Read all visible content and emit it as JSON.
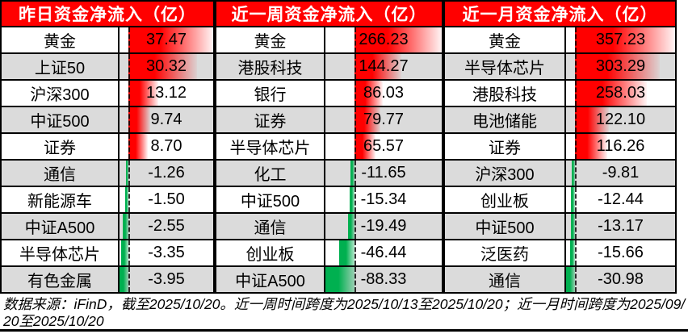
{
  "colors": {
    "header_bg": "#FF0000",
    "positive_bar": "#FF0000",
    "negative_bar": "#00B050",
    "stripe": "#DBDBDB",
    "header_text": "#FFFFFF"
  },
  "chart_data": [
    {
      "type": "bar",
      "title": "昨日资金净流入（亿）",
      "categories": [
        "黄金",
        "上证50",
        "沪深300",
        "中证500",
        "证券",
        "通信",
        "新能源车",
        "中证A500",
        "半导体芯片",
        "有色金属"
      ],
      "values": [
        37.47,
        30.32,
        13.12,
        9.74,
        8.7,
        -1.26,
        -1.5,
        -2.55,
        -3.35,
        -3.95
      ],
      "xlabel": "",
      "ylabel": "",
      "legend": false,
      "bar_style": "data-bars-with-dashed-zero-axis"
    },
    {
      "type": "bar",
      "title": "近一周资金净流入（亿）",
      "categories": [
        "黄金",
        "港股科技",
        "银行",
        "证券",
        "半导体芯片",
        "化工",
        "中证500",
        "通信",
        "创业板",
        "中证A500"
      ],
      "values": [
        266.23,
        144.27,
        86.03,
        79.77,
        65.57,
        -11.65,
        -15.34,
        -19.49,
        -46.44,
        -88.33
      ],
      "xlabel": "",
      "ylabel": "",
      "legend": false,
      "bar_style": "data-bars-with-dashed-zero-axis"
    },
    {
      "type": "bar",
      "title": "近一月资金净流入（亿）",
      "categories": [
        "黄金",
        "半导体芯片",
        "港股科技",
        "电池储能",
        "证券",
        "沪深300",
        "创业板",
        "中证500",
        "泛医药",
        "通信"
      ],
      "values": [
        357.23,
        303.29,
        258.03,
        122.1,
        116.26,
        -9.81,
        -12.44,
        -13.17,
        -15.66,
        -30.98
      ],
      "xlabel": "",
      "ylabel": "",
      "legend": false,
      "bar_style": "data-bars-with-dashed-zero-axis"
    }
  ],
  "footer": {
    "text": "数据来源：iFinD，截至2025/10/20。近一周时间跨度为2025/10/13至2025/10/20；近一月时间跨度为2025/09/20至2025/10/20"
  }
}
